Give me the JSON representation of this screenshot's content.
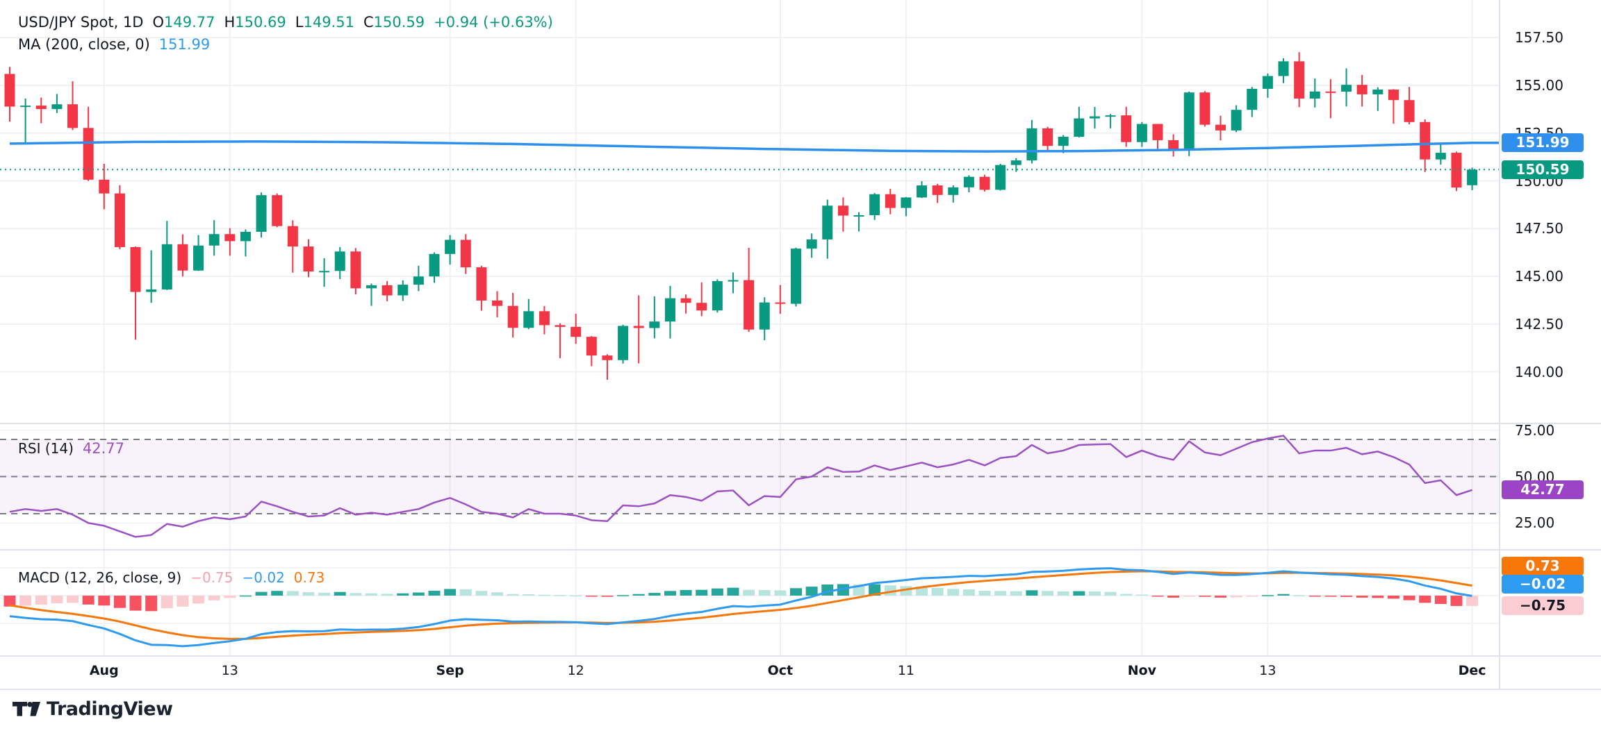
{
  "legend": {
    "title": "USD/JPY Spot, 1D",
    "o_label": "O",
    "o": "149.77",
    "h_label": "H",
    "h": "150.69",
    "l_label": "L",
    "l": "149.51",
    "c_label": "C",
    "c": "150.59",
    "change": "+0.94 (+0.63%)"
  },
  "ma_legend": {
    "label": "MA (200, close, 0)",
    "value": "151.99"
  },
  "rsi_legend": {
    "label": "RSI (14)",
    "value": "42.77"
  },
  "macd_legend": {
    "label": "MACD (12, 26, close, 9)",
    "hist": "−0.75",
    "macd": "−0.02",
    "signal": "0.73"
  },
  "axis": {
    "price_ticks": [
      "157.50",
      "155.00",
      "152.50",
      "150.00",
      "147.50",
      "145.00",
      "142.50",
      "140.00"
    ],
    "rsi_ticks": [
      "75.00",
      "50.00",
      "25.00"
    ],
    "badges": {
      "ma": "151.99",
      "last": "150.59",
      "rsi": "42.77",
      "macd_signal": "0.73",
      "macd_line": "−0.02",
      "macd_hist": "−0.75"
    }
  },
  "time_axis": {
    "ticks": [
      {
        "label": "Aug",
        "index": 6,
        "bold": true
      },
      {
        "label": "13",
        "index": 14,
        "bold": false
      },
      {
        "label": "Sep",
        "index": 28,
        "bold": true
      },
      {
        "label": "12",
        "index": 36,
        "bold": false
      },
      {
        "label": "Oct",
        "index": 49,
        "bold": true
      },
      {
        "label": "11",
        "index": 57,
        "bold": false
      },
      {
        "label": "Nov",
        "index": 72,
        "bold": true
      },
      {
        "label": "13",
        "index": 80,
        "bold": false
      },
      {
        "label": "Dec",
        "index": 93,
        "bold": true
      }
    ]
  },
  "colors": {
    "up": "#089981",
    "down": "#F23645",
    "ma_line": "#2E90EC",
    "macd_line": "#2E9BF0",
    "signal_line": "#F7770A",
    "hist_pos_strong": "#26A69A",
    "hist_pos_weak": "#B7E4DC",
    "hist_neg_strong": "#F7525F",
    "hist_neg_weak": "#FACBCF",
    "rsi_line": "#9B51C2",
    "rsi_badge": "#9C44C6",
    "rsi_band_fill": "rgba(156,68,198,0.07)",
    "rsi_dash": "#787B86",
    "grid": "#F0F1F5",
    "grid_faint": "#F2F3F7",
    "separator": "#E0E3EB",
    "last_badge": "#089981",
    "ma_badge": "#2E90EC",
    "macd_signal_badge": "#F7770A",
    "macd_line_badge": "#2E9BF0",
    "macd_hist_badge": "#FBCDD2",
    "text": "#131722"
  },
  "chart_data": {
    "type": "candlestick",
    "symbol": "USD/JPY Spot",
    "interval": "1D",
    "title": "USD/JPY Spot, 1D",
    "last_bar": {
      "open": 149.77,
      "high": 150.69,
      "low": 149.51,
      "close": 150.59,
      "change": 0.94,
      "change_pct": 0.63
    },
    "last_price": 150.59,
    "price_axis_values": [
      157.5,
      155.0,
      152.5,
      150.0,
      147.5,
      145.0,
      142.5,
      140.0
    ],
    "price_range_visible": [
      137.5,
      159.5
    ],
    "candles": [
      [
        155.6,
        155.97,
        153.1,
        153.89
      ],
      [
        153.89,
        154.31,
        151.94,
        153.94
      ],
      [
        153.94,
        154.36,
        153.02,
        153.76
      ],
      [
        153.76,
        154.55,
        153.55,
        154.01
      ],
      [
        154.01,
        155.22,
        152.66,
        152.77
      ],
      [
        152.77,
        153.88,
        149.99,
        150.06
      ],
      [
        150.06,
        150.89,
        148.51,
        149.34
      ],
      [
        149.34,
        149.77,
        146.42,
        146.53
      ],
      [
        146.53,
        146.56,
        141.68,
        144.18
      ],
      [
        144.18,
        146.36,
        143.61,
        144.31
      ],
      [
        144.31,
        147.9,
        144.28,
        146.68
      ],
      [
        146.68,
        147.2,
        144.99,
        145.3
      ],
      [
        145.3,
        147.16,
        145.28,
        146.61
      ],
      [
        146.61,
        147.94,
        146.08,
        147.21
      ],
      [
        147.21,
        147.52,
        146.08,
        146.84
      ],
      [
        146.84,
        147.45,
        146.04,
        147.33
      ],
      [
        147.33,
        149.39,
        147.03,
        149.25
      ],
      [
        149.25,
        149.34,
        147.57,
        147.63
      ],
      [
        147.63,
        147.93,
        145.19,
        146.56
      ],
      [
        146.56,
        146.94,
        144.95,
        145.25
      ],
      [
        145.25,
        145.95,
        144.45,
        145.28
      ],
      [
        145.28,
        146.53,
        144.85,
        146.3
      ],
      [
        146.3,
        146.48,
        144.05,
        144.37
      ],
      [
        144.37,
        144.62,
        143.45,
        144.53
      ],
      [
        144.53,
        144.75,
        143.69,
        144.0
      ],
      [
        144.0,
        144.79,
        143.71,
        144.56
      ],
      [
        144.56,
        145.55,
        144.22,
        144.99
      ],
      [
        144.99,
        146.25,
        144.66,
        146.17
      ],
      [
        146.17,
        147.16,
        145.61,
        146.91
      ],
      [
        146.91,
        147.21,
        145.12,
        145.47
      ],
      [
        145.47,
        145.55,
        143.2,
        143.73
      ],
      [
        143.73,
        144.22,
        142.85,
        143.45
      ],
      [
        143.45,
        144.13,
        141.79,
        142.3
      ],
      [
        142.3,
        143.81,
        142.23,
        143.17
      ],
      [
        143.17,
        143.44,
        141.96,
        142.44
      ],
      [
        142.44,
        142.54,
        140.71,
        142.35
      ],
      [
        142.35,
        143.04,
        141.46,
        141.83
      ],
      [
        141.83,
        141.87,
        140.29,
        140.85
      ],
      [
        140.85,
        140.91,
        139.58,
        140.61
      ],
      [
        140.61,
        142.46,
        140.43,
        142.4
      ],
      [
        142.4,
        144.0,
        140.44,
        142.29
      ],
      [
        142.29,
        143.95,
        141.75,
        142.63
      ],
      [
        142.63,
        144.5,
        141.74,
        143.85
      ],
      [
        143.85,
        144.05,
        143.05,
        143.61
      ],
      [
        143.61,
        144.68,
        142.91,
        143.21
      ],
      [
        143.21,
        144.84,
        143.1,
        144.75
      ],
      [
        144.75,
        145.2,
        144.11,
        144.8
      ],
      [
        144.8,
        146.49,
        142.09,
        142.21
      ],
      [
        142.21,
        143.9,
        141.65,
        143.63
      ],
      [
        143.63,
        144.54,
        143.03,
        143.56
      ],
      [
        143.56,
        146.5,
        143.42,
        146.45
      ],
      [
        146.45,
        147.24,
        145.97,
        146.93
      ],
      [
        146.93,
        149.02,
        145.92,
        148.7
      ],
      [
        148.7,
        149.13,
        147.34,
        148.18
      ],
      [
        148.18,
        148.36,
        147.35,
        148.2
      ],
      [
        148.2,
        149.36,
        147.95,
        149.3
      ],
      [
        149.3,
        149.58,
        148.25,
        148.58
      ],
      [
        148.58,
        149.15,
        148.15,
        149.13
      ],
      [
        149.13,
        149.98,
        149.1,
        149.76
      ],
      [
        149.76,
        149.84,
        148.84,
        149.26
      ],
      [
        149.26,
        149.76,
        148.86,
        149.66
      ],
      [
        149.66,
        150.29,
        149.4,
        150.21
      ],
      [
        150.21,
        150.32,
        149.44,
        149.53
      ],
      [
        149.53,
        150.89,
        149.49,
        150.83
      ],
      [
        150.83,
        151.19,
        150.47,
        151.07
      ],
      [
        151.07,
        153.19,
        150.91,
        152.75
      ],
      [
        152.75,
        152.83,
        151.51,
        151.83
      ],
      [
        151.83,
        152.4,
        151.45,
        152.31
      ],
      [
        152.31,
        153.88,
        152.27,
        153.27
      ],
      [
        153.27,
        153.87,
        152.74,
        153.38
      ],
      [
        153.38,
        153.5,
        152.75,
        153.43
      ],
      [
        153.43,
        153.88,
        151.78,
        152.03
      ],
      [
        152.03,
        153.08,
        151.78,
        152.98
      ],
      [
        152.98,
        152.98,
        151.54,
        152.13
      ],
      [
        152.13,
        152.44,
        151.27,
        151.6
      ],
      [
        151.6,
        154.68,
        151.29,
        154.63
      ],
      [
        154.63,
        154.7,
        152.84,
        152.94
      ],
      [
        152.94,
        153.41,
        152.12,
        152.64
      ],
      [
        152.64,
        153.96,
        152.55,
        153.72
      ],
      [
        153.72,
        154.92,
        153.34,
        154.82
      ],
      [
        154.82,
        155.62,
        154.35,
        155.49
      ],
      [
        155.49,
        156.42,
        155.12,
        156.26
      ],
      [
        156.26,
        156.74,
        153.86,
        154.31
      ],
      [
        154.31,
        155.36,
        153.84,
        154.68
      ],
      [
        154.68,
        155.33,
        153.28,
        154.67
      ],
      [
        154.67,
        155.89,
        153.9,
        155.03
      ],
      [
        155.03,
        155.55,
        153.89,
        154.53
      ],
      [
        154.53,
        154.9,
        153.66,
        154.78
      ],
      [
        154.78,
        154.8,
        152.99,
        154.23
      ],
      [
        154.23,
        154.92,
        152.96,
        153.08
      ],
      [
        153.08,
        153.22,
        150.46,
        151.12
      ],
      [
        151.12,
        151.98,
        150.85,
        151.47
      ],
      [
        151.47,
        151.53,
        149.47,
        149.65
      ],
      [
        149.77,
        150.69,
        149.51,
        150.59
      ]
    ],
    "ma200": {
      "period": 200,
      "source": "close",
      "offset": 0,
      "last": 151.99,
      "keypoints": [
        [
          0,
          151.95
        ],
        [
          8,
          152.04
        ],
        [
          16,
          152.06
        ],
        [
          24,
          152.02
        ],
        [
          32,
          151.93
        ],
        [
          40,
          151.8
        ],
        [
          48,
          151.67
        ],
        [
          56,
          151.57
        ],
        [
          62,
          151.54
        ],
        [
          68,
          151.56
        ],
        [
          74,
          151.62
        ],
        [
          80,
          151.72
        ],
        [
          86,
          151.84
        ],
        [
          90,
          151.93
        ],
        [
          93,
          151.99
        ]
      ]
    },
    "rsi": {
      "period": 14,
      "last": 42.77,
      "levels": [
        70,
        50,
        30
      ],
      "axis_ticks": [
        75,
        50,
        25
      ],
      "values": [
        31.0,
        32.5,
        31.5,
        32.5,
        29.5,
        25.0,
        23.5,
        20.5,
        17.5,
        18.5,
        24.5,
        23.0,
        26.0,
        28.0,
        27.0,
        28.5,
        36.5,
        34.0,
        31.0,
        28.5,
        29.0,
        33.0,
        29.5,
        30.5,
        29.5,
        31.0,
        32.5,
        36.0,
        38.5,
        35.0,
        31.0,
        30.0,
        28.0,
        32.5,
        30.0,
        30.0,
        29.0,
        26.5,
        26.0,
        34.5,
        34.0,
        35.5,
        40.0,
        39.0,
        37.0,
        42.0,
        42.5,
        34.5,
        39.5,
        39.0,
        48.5,
        50.0,
        55.0,
        52.5,
        52.7,
        56.0,
        53.5,
        55.5,
        57.5,
        55.0,
        56.5,
        59.0,
        56.0,
        60.0,
        61.0,
        67.0,
        62.5,
        64.0,
        67.0,
        67.3,
        67.5,
        60.5,
        64.0,
        61.0,
        59.0,
        69.0,
        63.0,
        61.5,
        65.0,
        68.5,
        70.5,
        72.0,
        62.5,
        64.0,
        64.0,
        65.5,
        62.0,
        63.5,
        60.5,
        56.5,
        46.5,
        48.0,
        40.0,
        42.77
      ]
    },
    "macd": {
      "fast": 12,
      "slow": 26,
      "source": "close",
      "signal_period": 9,
      "hist_last": -0.75,
      "macd_last": -0.02,
      "signal_last": 0.73,
      "seeds": {
        "ema12": 157.4,
        "ema26": 158.7,
        "signal": -0.5
      },
      "value_gridlines": [
        2,
        0,
        -2
      ]
    }
  },
  "branding": {
    "logo_text": "TradingView"
  }
}
